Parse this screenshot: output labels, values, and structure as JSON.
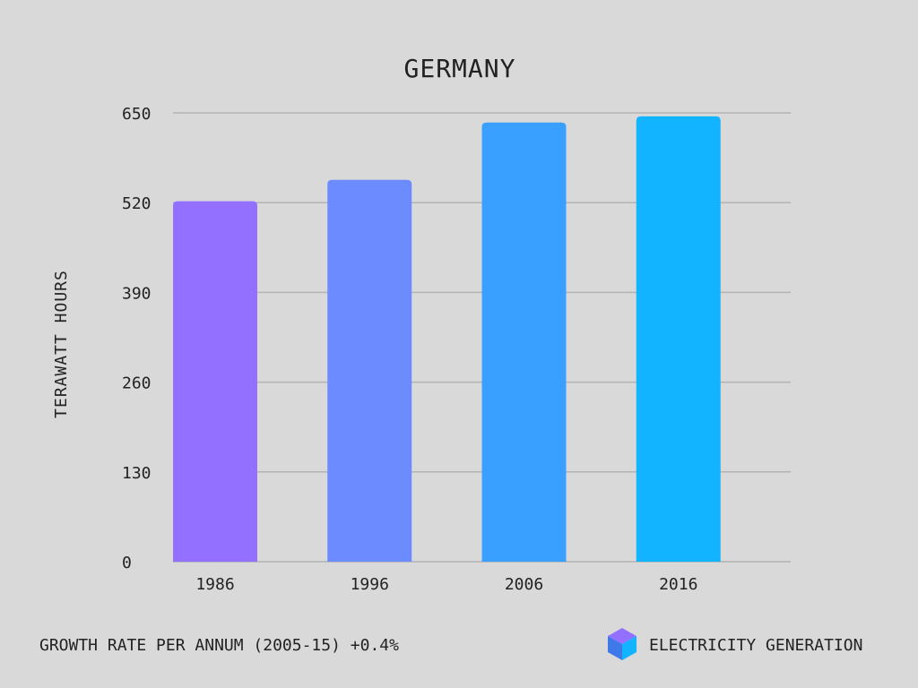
{
  "chart_data": {
    "type": "bar",
    "title": "GERMANY",
    "xlabel": "",
    "ylabel": "TERAWATT HOURS",
    "categories": [
      "1986",
      "1996",
      "2006",
      "2016"
    ],
    "values": [
      522,
      553,
      636,
      645
    ],
    "ylim": [
      0,
      650
    ],
    "yticks": [
      "0",
      "130",
      "260",
      "390",
      "520",
      "650"
    ],
    "grid": true,
    "bar_colors": [
      "#9370ff",
      "#6b8bff",
      "#3aa0ff",
      "#12b4ff"
    ],
    "gridline_color": "#b3b3b3"
  },
  "footer": {
    "growth_text": "GROWTH RATE PER ANNUM (2005-15) +0.4%",
    "brand_text": "ELECTRICITY GENERATION",
    "logo_icon": "cube-icon",
    "logo_colors": [
      "#9370ff",
      "#3aa0ff",
      "#12b4ff",
      "#6b8bff"
    ]
  }
}
